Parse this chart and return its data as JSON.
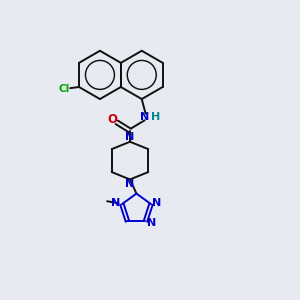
{
  "background_color": "#e8eaf2",
  "bond_color": "#111111",
  "nitrogen_color": "#0000cc",
  "oxygen_color": "#cc0000",
  "chlorine_color": "#00aa00",
  "fig_width": 3.0,
  "fig_height": 3.0,
  "dpi": 100,
  "xlim": [
    0,
    10
  ],
  "ylim": [
    0,
    10
  ]
}
